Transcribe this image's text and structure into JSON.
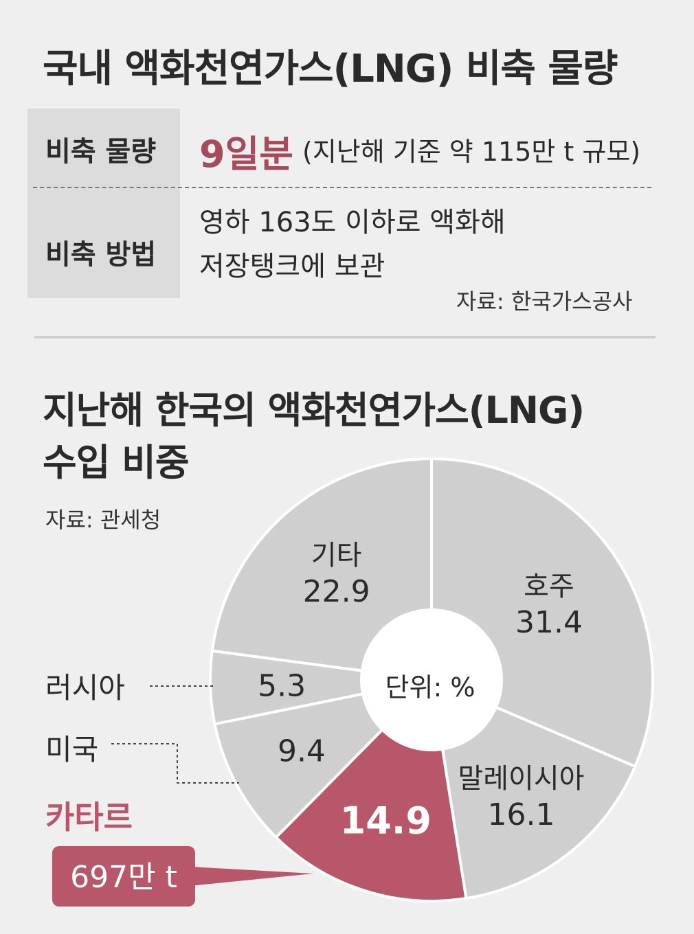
{
  "header": {
    "title": "국내 액화천연가스(LNG) 비축 물량"
  },
  "stockpile_table": {
    "row1_label": "비축 물량",
    "row1_value_main": "9일분",
    "row1_value_detail": "(지난해 기준 약 115만 t 규모)",
    "row2_label": "비축 방법",
    "row2_value_line1": "영하 163도 이하로 액화해",
    "row2_value_line2": "저장탱크에 보관",
    "source": "자료: 한국가스공사"
  },
  "chart_section": {
    "title_line1": "지난해 한국의 액화천연가스(LNG)",
    "title_line2": "수입 비중",
    "source": "자료: 관세청",
    "center_label": "단위: %",
    "qatar_callout": "697만 t"
  },
  "colors": {
    "highlight": "#b8566a",
    "slice_gray": "#cfcfcf",
    "text": "#2a2a2a",
    "accent_text": "#a74a5c"
  },
  "chart_data": {
    "type": "pie",
    "title": "지난해 한국의 액화천연가스(LNG) 수입 비중",
    "unit": "%",
    "donut": true,
    "categories": [
      "호주",
      "말레이시아",
      "카타르",
      "미국",
      "러시아",
      "기타"
    ],
    "values": [
      31.4,
      16.1,
      14.9,
      9.4,
      5.3,
      22.9
    ],
    "value_labels": [
      "31.4",
      "16.1",
      "14.9",
      "9.4",
      "5.3",
      "22.9"
    ],
    "highlight": "카타르"
  }
}
